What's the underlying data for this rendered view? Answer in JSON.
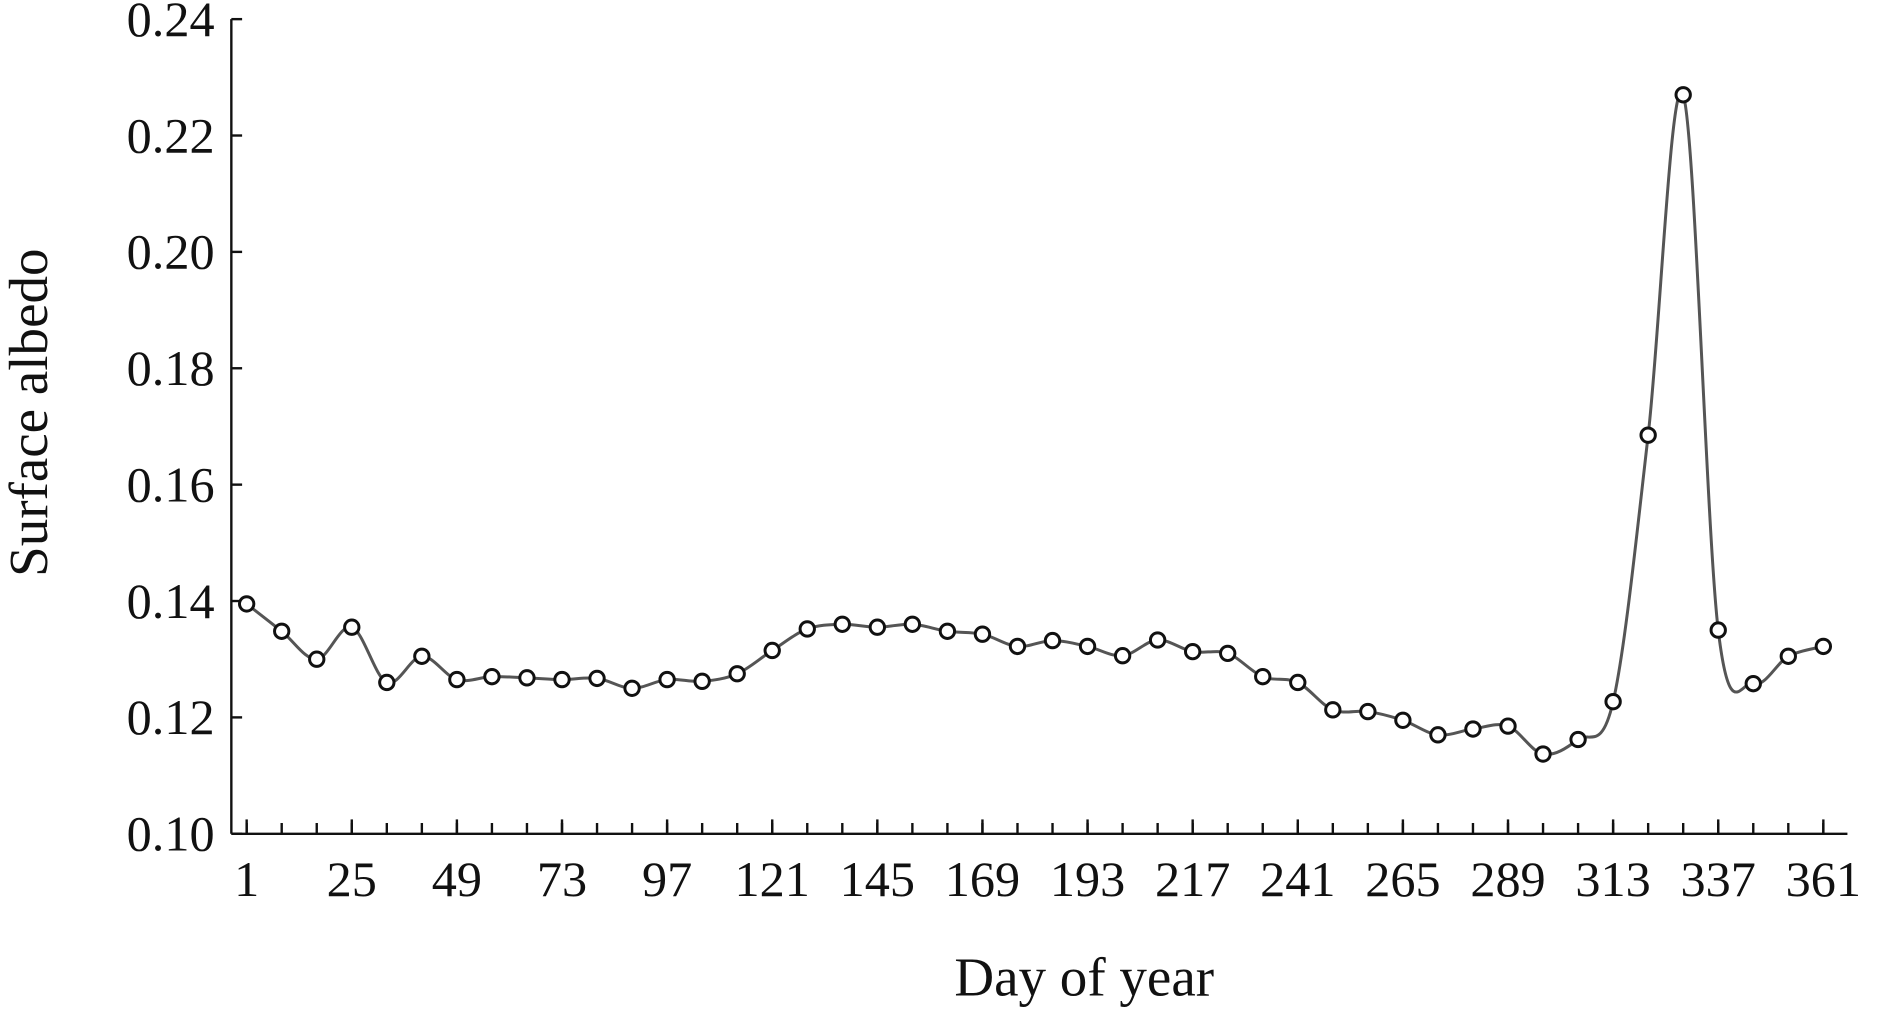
{
  "chart_data": {
    "type": "line",
    "x_label": "Day of year",
    "y_label": "Surface albedo",
    "x": [
      1,
      9,
      17,
      25,
      33,
      41,
      49,
      57,
      65,
      73,
      81,
      89,
      97,
      105,
      113,
      121,
      129,
      137,
      145,
      153,
      161,
      169,
      177,
      185,
      193,
      201,
      209,
      217,
      225,
      233,
      241,
      249,
      257,
      265,
      273,
      281,
      289,
      297,
      305,
      313,
      321,
      329,
      337,
      345,
      353,
      361
    ],
    "series": [
      {
        "color": "#555555",
        "values": [
          0.1395,
          0.1348,
          0.13,
          0.1355,
          0.126,
          0.1305,
          0.1265,
          0.127,
          0.1268,
          0.1265,
          0.1267,
          0.125,
          0.1265,
          0.1262,
          0.1275,
          0.1315,
          0.1352,
          0.136,
          0.1355,
          0.136,
          0.1348,
          0.1343,
          0.1322,
          0.1332,
          0.1322,
          0.1306,
          0.1333,
          0.1313,
          0.131,
          0.127,
          0.126,
          0.1213,
          0.121,
          0.1195,
          0.117,
          0.118,
          0.1185,
          0.1137,
          0.1162,
          0.1227,
          0.1685,
          0.227,
          0.135,
          0.1258,
          0.1305,
          0.1322
        ]
      }
    ],
    "xlim": [
      -2.5,
      366.5
    ],
    "xticks": [
      1,
      25,
      49,
      73,
      97,
      121,
      145,
      169,
      193,
      217,
      241,
      265,
      289,
      313,
      337,
      361
    ],
    "ylim": [
      0.1,
      0.24
    ],
    "yticks": [
      {
        "value": 0.1,
        "label": "0.10"
      },
      0.12,
      0.14,
      0.16,
      0.18,
      {
        "value": 0.2,
        "label": "0.20"
      },
      0.22,
      0.24
    ]
  }
}
